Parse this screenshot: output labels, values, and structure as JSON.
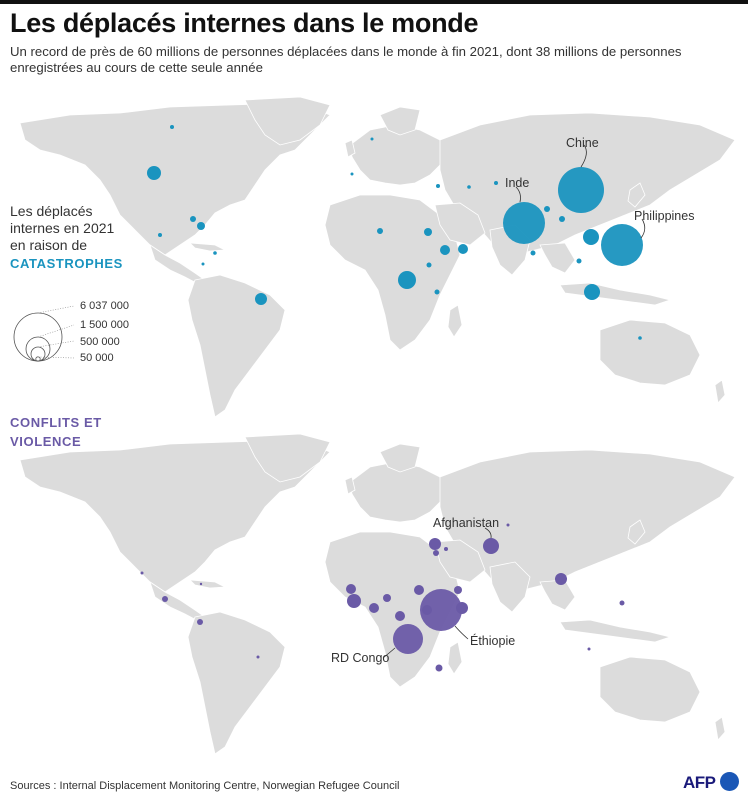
{
  "header": {
    "title": "Les déplacés internes dans le monde",
    "subtitle": "Un record de près de 60 millions de personnes déplacées dans le monde à fin 2021, dont 38 millions de personnes enregistrées au cours de cette seule année"
  },
  "legend": {
    "intro": "Les déplacés internes en 2021 en raison de",
    "category_disasters": "CATASTROPHES",
    "category_conflicts": "CONFLITS ET VIOLENCE",
    "scale": [
      {
        "label": "6 037 000",
        "value": 6037000
      },
      {
        "label": "1 500 000",
        "value": 1500000
      },
      {
        "label": "500 000",
        "value": 500000
      },
      {
        "label": "50 000",
        "value": 50000
      }
    ]
  },
  "colors": {
    "disasters": "#1a94bf",
    "conflicts": "#6a5aa6",
    "land": "#dcdcdc"
  },
  "maps": {
    "disasters_labels": {
      "china": "Chine",
      "india": "Inde",
      "philippines": "Philippines"
    },
    "conflicts_labels": {
      "afghanistan": "Afghanistan",
      "ethiopia": "Éthiopie",
      "drc": "RD Congo"
    }
  },
  "footer": {
    "sources": "Sources : Internal Displacement Monitoring Centre, Norwegian Refugee Council",
    "logo": "AFP"
  }
}
